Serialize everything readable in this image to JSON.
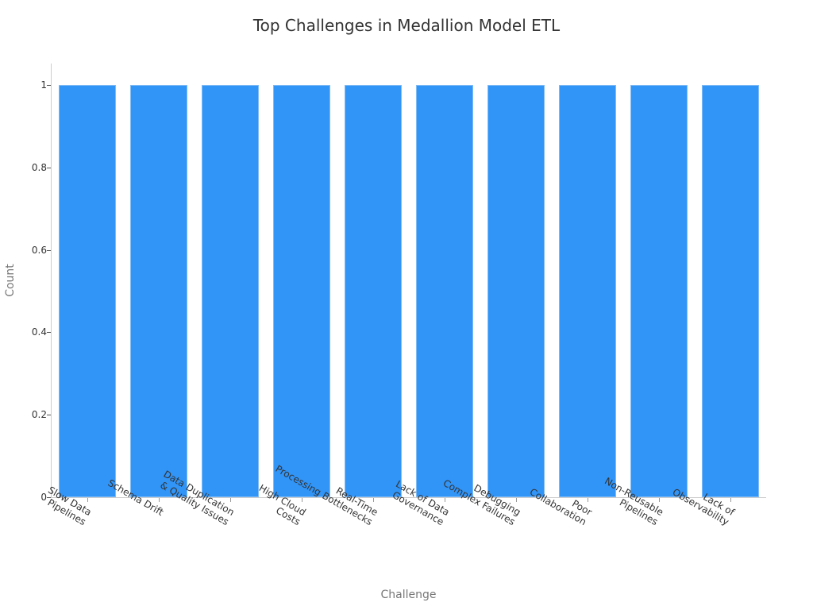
{
  "chart_data": {
    "type": "bar",
    "title": "Top Challenges in Medallion Model ETL",
    "xlabel": "Challenge",
    "ylabel": "Count",
    "categories": [
      "Slow Data\nPipelines",
      "Schema Drift",
      "Data Duplication\n& Quality Issues",
      "High Cloud\nCosts",
      "Real-Time\nProcessing Bottlenecks",
      "Lack of Data\nGovernance",
      "Debugging\nComplex Failures",
      "Poor\nCollaboration",
      "Non-Reusable\nPipelines",
      "Lack of\nObservability"
    ],
    "values": [
      1,
      1,
      1,
      1,
      1,
      1,
      1,
      1,
      1,
      1
    ],
    "ylim": [
      0,
      1.05
    ],
    "yticks": [
      "0",
      "0.2",
      "0.4",
      "0.6",
      "0.8",
      "1"
    ],
    "ytick_values": [
      0,
      0.2,
      0.4,
      0.6,
      0.8,
      1
    ],
    "grid": false,
    "legend": null,
    "bar_color": "#3194f7"
  }
}
